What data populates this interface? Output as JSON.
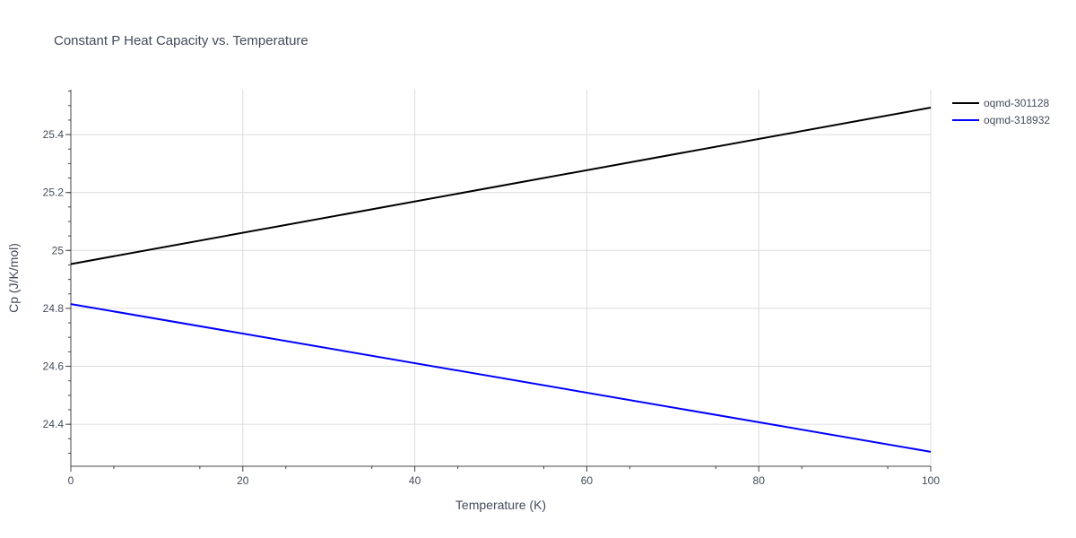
{
  "chart_data": {
    "type": "line",
    "title": "Constant P Heat Capacity vs. Temperature",
    "xlabel": "Temperature (K)",
    "ylabel": "Cp (J/K/mol)",
    "xlim": [
      0,
      100
    ],
    "ylim": [
      24.255,
      25.555
    ],
    "x_ticks": [
      0,
      20,
      40,
      60,
      80,
      100
    ],
    "y_ticks": [
      24.4,
      24.6,
      24.8,
      25,
      25.2,
      25.4
    ],
    "x_tick_labels": [
      "0",
      "20",
      "40",
      "60",
      "80",
      "100"
    ],
    "y_tick_labels": [
      "24.4",
      "24.6",
      "24.8",
      "25",
      "25.2",
      "25.4"
    ],
    "grid": true,
    "legend_position": "top-right",
    "series": [
      {
        "name": "oqmd-301128",
        "color": "#000000",
        "x": [
          0,
          100
        ],
        "y": [
          24.953,
          25.493
        ]
      },
      {
        "name": "oqmd-318932",
        "color": "#0000ff",
        "x": [
          0,
          100
        ],
        "y": [
          24.815,
          24.305
        ]
      }
    ]
  }
}
